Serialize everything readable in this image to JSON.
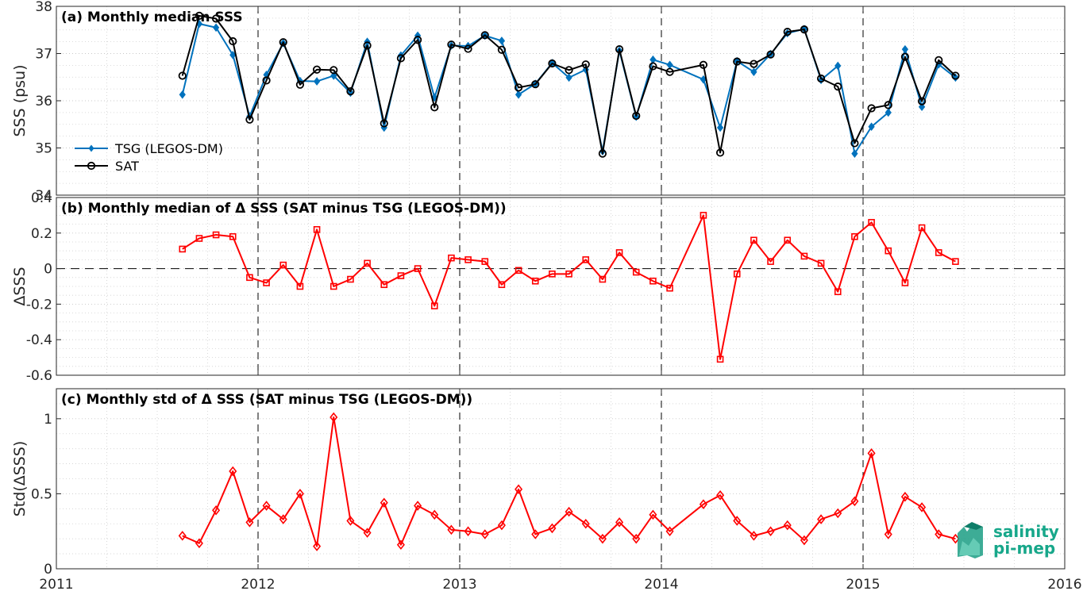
{
  "chart_data": [
    {
      "type": "line",
      "title": "(a) Monthly median SSS",
      "xlabel": "",
      "ylabel": "SSS (psu)",
      "xlim": [
        "2011",
        "2016"
      ],
      "ylim": [
        34,
        38
      ],
      "yticks": [
        "34",
        "35",
        "36",
        "37",
        "38"
      ],
      "xticks": [
        "2011",
        "2012",
        "2013",
        "2014",
        "2015",
        "2016"
      ],
      "grid": "minor dotted, dashed lines at year boundaries",
      "legend_position": "lower-left",
      "x": [
        "2011-08",
        "2011-09",
        "2011-10",
        "2011-11",
        "2011-12",
        "2012-01",
        "2012-02",
        "2012-03",
        "2012-04",
        "2012-05",
        "2012-06",
        "2012-07",
        "2012-08",
        "2012-09",
        "2012-10",
        "2012-11",
        "2012-12",
        "2013-01",
        "2013-02",
        "2013-03",
        "2013-04",
        "2013-05",
        "2013-06",
        "2013-07",
        "2013-08",
        "2013-09",
        "2013-10",
        "2013-11",
        "2013-12",
        "2014-01",
        "2014-03",
        "2014-04",
        "2014-05",
        "2014-06",
        "2014-07",
        "2014-08",
        "2014-09",
        "2014-10",
        "2014-11",
        "2014-12",
        "2015-01",
        "2015-02",
        "2015-03",
        "2015-04",
        "2015-05",
        "2015-06"
      ],
      "series": [
        {
          "name": "TSG (LEGOS-DM)",
          "color": "#0072bd",
          "marker": "filled-diamond",
          "values": [
            36.13,
            37.63,
            37.55,
            36.97,
            35.67,
            36.55,
            37.22,
            36.42,
            36.41,
            36.53,
            36.17,
            37.25,
            35.43,
            36.96,
            37.38,
            36.07,
            37.17,
            37.16,
            37.38,
            37.27,
            36.13,
            36.36,
            36.8,
            36.49,
            36.66,
            34.93,
            37.06,
            35.66,
            36.87,
            36.76,
            36.45,
            35.43,
            36.84,
            36.61,
            36.99,
            37.43,
            37.52,
            36.44,
            36.74,
            34.88,
            35.45,
            35.75,
            37.09,
            35.87,
            36.77,
            36.49
          ]
        },
        {
          "name": "SAT",
          "color": "#000000",
          "marker": "open-circle",
          "values": [
            36.53,
            37.8,
            37.74,
            37.26,
            35.6,
            36.43,
            37.24,
            36.34,
            36.66,
            36.65,
            36.2,
            37.17,
            35.52,
            36.9,
            37.29,
            35.86,
            37.19,
            37.1,
            37.39,
            37.08,
            36.28,
            36.35,
            36.79,
            36.65,
            36.77,
            34.88,
            37.09,
            35.68,
            36.73,
            36.61,
            36.76,
            34.9,
            36.83,
            36.78,
            36.98,
            37.46,
            37.51,
            36.47,
            36.3,
            35.1,
            35.84,
            35.91,
            36.93,
            35.99,
            36.86,
            36.53
          ]
        }
      ]
    },
    {
      "type": "line",
      "title": "(b) Monthly median of Δ SSS (SAT minus TSG (LEGOS-DM))",
      "xlabel": "",
      "ylabel": "ΔSSS",
      "xlim": [
        "2011",
        "2016"
      ],
      "ylim": [
        -0.6,
        0.4
      ],
      "yticks": [
        "-0.6",
        "-0.4",
        "-0.2",
        "0",
        "0.2",
        "0.4"
      ],
      "xticks": [
        "2011",
        "2012",
        "2013",
        "2014",
        "2015",
        "2016"
      ],
      "grid": "minor dotted, dashed lines at year boundaries, dashed zero line",
      "x": [
        "2011-08",
        "2011-09",
        "2011-10",
        "2011-11",
        "2011-12",
        "2012-01",
        "2012-02",
        "2012-03",
        "2012-04",
        "2012-05",
        "2012-06",
        "2012-07",
        "2012-08",
        "2012-09",
        "2012-10",
        "2012-11",
        "2012-12",
        "2013-01",
        "2013-02",
        "2013-03",
        "2013-04",
        "2013-05",
        "2013-06",
        "2013-07",
        "2013-08",
        "2013-09",
        "2013-10",
        "2013-11",
        "2013-12",
        "2014-01",
        "2014-03",
        "2014-04",
        "2014-05",
        "2014-06",
        "2014-07",
        "2014-08",
        "2014-09",
        "2014-10",
        "2014-11",
        "2014-12",
        "2015-01",
        "2015-02",
        "2015-03",
        "2015-04",
        "2015-05",
        "2015-06"
      ],
      "series": [
        {
          "name": "",
          "color": "#ff0000",
          "marker": "open-square",
          "values": [
            0.11,
            0.17,
            0.19,
            0.18,
            -0.05,
            -0.08,
            0.02,
            -0.1,
            0.22,
            -0.1,
            -0.06,
            0.03,
            -0.09,
            -0.04,
            0.0,
            -0.21,
            0.06,
            0.05,
            0.04,
            -0.09,
            -0.01,
            -0.07,
            -0.03,
            -0.03,
            0.05,
            -0.06,
            0.09,
            -0.02,
            -0.07,
            -0.11,
            0.3,
            -0.51,
            -0.03,
            0.16,
            0.04,
            0.16,
            0.07,
            0.03,
            -0.13,
            0.18,
            0.26,
            0.1,
            -0.08,
            0.23,
            0.09,
            0.04
          ]
        }
      ]
    },
    {
      "type": "line",
      "title": "(c) Monthly std of Δ SSS (SAT minus TSG (LEGOS-DM))",
      "xlabel": "",
      "ylabel": "Std(ΔSSS)",
      "xlim": [
        "2011",
        "2016"
      ],
      "ylim": [
        0,
        1.2
      ],
      "yticks": [
        "0",
        "0.5",
        "1"
      ],
      "xticks": [
        "2011",
        "2012",
        "2013",
        "2014",
        "2015",
        "2016"
      ],
      "grid": "minor dotted, dashed lines at year boundaries",
      "x": [
        "2011-08",
        "2011-09",
        "2011-10",
        "2011-11",
        "2011-12",
        "2012-01",
        "2012-02",
        "2012-03",
        "2012-04",
        "2012-05",
        "2012-06",
        "2012-07",
        "2012-08",
        "2012-09",
        "2012-10",
        "2012-11",
        "2012-12",
        "2013-01",
        "2013-02",
        "2013-03",
        "2013-04",
        "2013-05",
        "2013-06",
        "2013-07",
        "2013-08",
        "2013-09",
        "2013-10",
        "2013-11",
        "2013-12",
        "2014-01",
        "2014-03",
        "2014-04",
        "2014-05",
        "2014-06",
        "2014-07",
        "2014-08",
        "2014-09",
        "2014-10",
        "2014-11",
        "2014-12",
        "2015-01",
        "2015-02",
        "2015-03",
        "2015-04",
        "2015-05",
        "2015-06"
      ],
      "series": [
        {
          "name": "",
          "color": "#ff0000",
          "marker": "open-diamond",
          "values": [
            0.22,
            0.17,
            0.39,
            0.65,
            0.31,
            0.42,
            0.33,
            0.5,
            0.15,
            1.01,
            0.32,
            0.24,
            0.44,
            0.16,
            0.42,
            0.36,
            0.26,
            0.25,
            0.23,
            0.29,
            0.53,
            0.23,
            0.27,
            0.38,
            0.3,
            0.2,
            0.31,
            0.2,
            0.36,
            0.25,
            0.43,
            0.49,
            0.32,
            0.22,
            0.25,
            0.29,
            0.19,
            0.33,
            0.37,
            0.45,
            0.77,
            0.23,
            0.48,
            0.41,
            0.23,
            0.2
          ]
        }
      ]
    }
  ],
  "logo": {
    "line1": "salinity",
    "line2": "pi-mep",
    "color": "#17a78a"
  }
}
